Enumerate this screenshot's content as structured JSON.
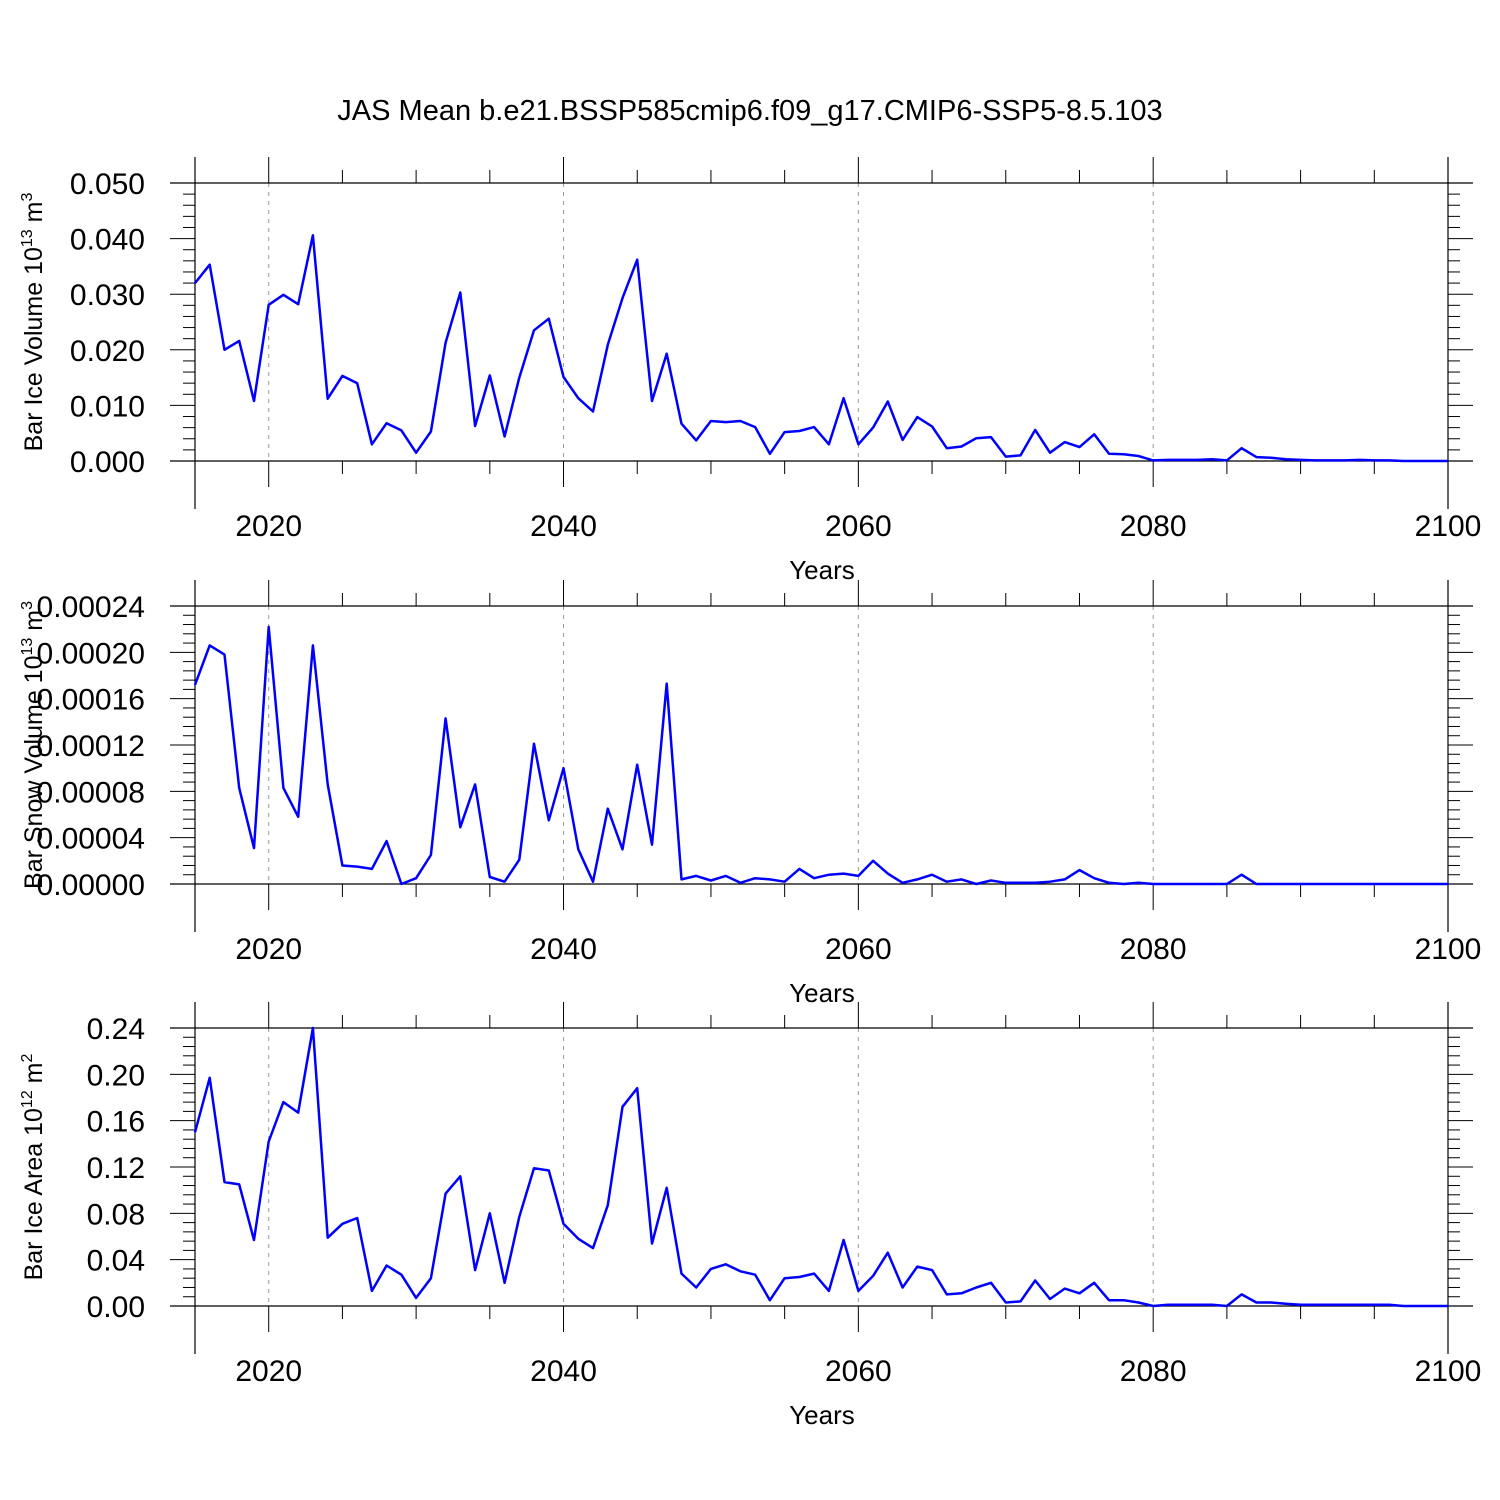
{
  "title": "JAS Mean b.e21.BSSP585cmip6.f09_g17.CMIP6-SSP5-8.5.103",
  "colors": {
    "line": "#0000ff",
    "axis": "#000000",
    "grid": "#999999"
  },
  "chart_data": [
    {
      "type": "line",
      "ylabel": {
        "text": "Bar Ice Volume 10",
        "exp": "13",
        "unit": " m",
        "unit_exp": "3"
      },
      "xlabel": "Years",
      "xlim": [
        2015,
        2100
      ],
      "ylim": [
        0,
        0.05
      ],
      "yticks": [
        0,
        0.01,
        0.02,
        0.03,
        0.04,
        0.05
      ],
      "ytick_labels": [
        "0.000",
        "0.010",
        "0.020",
        "0.030",
        "0.040",
        "0.050"
      ],
      "xticks": [
        2020,
        2040,
        2060,
        2080,
        2100
      ],
      "xtick_labels": [
        "2020",
        "2040",
        "2060",
        "2080",
        "2100"
      ],
      "grid": "x-dashed",
      "x": [
        2015,
        2016,
        2017,
        2018,
        2019,
        2020,
        2021,
        2022,
        2023,
        2024,
        2025,
        2026,
        2027,
        2028,
        2029,
        2030,
        2031,
        2032,
        2033,
        2034,
        2035,
        2036,
        2037,
        2038,
        2039,
        2040,
        2041,
        2042,
        2043,
        2044,
        2045,
        2046,
        2047,
        2048,
        2049,
        2050,
        2051,
        2052,
        2053,
        2054,
        2055,
        2056,
        2057,
        2058,
        2059,
        2060,
        2061,
        2062,
        2063,
        2064,
        2065,
        2066,
        2067,
        2068,
        2069,
        2070,
        2071,
        2072,
        2073,
        2074,
        2075,
        2076,
        2077,
        2078,
        2079,
        2080,
        2081,
        2082,
        2083,
        2084,
        2085,
        2086,
        2087,
        2088,
        2089,
        2090,
        2091,
        2092,
        2093,
        2094,
        2095,
        2096,
        2097,
        2098,
        2099,
        2100
      ],
      "values": [
        0.032,
        0.0353,
        0.02,
        0.0216,
        0.0108,
        0.0281,
        0.0299,
        0.0282,
        0.0406,
        0.0112,
        0.0153,
        0.014,
        0.003,
        0.0068,
        0.0055,
        0.0015,
        0.0053,
        0.0213,
        0.0303,
        0.0063,
        0.0154,
        0.0044,
        0.015,
        0.0235,
        0.0256,
        0.0151,
        0.0113,
        0.0089,
        0.0209,
        0.0293,
        0.0362,
        0.0108,
        0.0193,
        0.0067,
        0.0037,
        0.0072,
        0.007,
        0.0072,
        0.0061,
        0.0013,
        0.0052,
        0.0054,
        0.0061,
        0.003,
        0.0113,
        0.003,
        0.006,
        0.0107,
        0.0038,
        0.0079,
        0.0062,
        0.0023,
        0.0026,
        0.0041,
        0.0043,
        0.0008,
        0.001,
        0.0056,
        0.0015,
        0.0034,
        0.0025,
        0.0048,
        0.0013,
        0.0012,
        0.0009,
        0.0001,
        0.0002,
        0.0002,
        0.0002,
        0.0003,
        0.0001,
        0.0023,
        0.0007,
        0.0006,
        0.0003,
        0.0002,
        0.0001,
        0.0001,
        0.0001,
        0.0002,
        0.0001,
        0.0001,
        0.0,
        0.0,
        0.0,
        0.0
      ]
    },
    {
      "type": "line",
      "ylabel": {
        "text": "Bar Snow Volume 10",
        "exp": "13",
        "unit": " m",
        "unit_exp": "3"
      },
      "xlabel": "Years",
      "xlim": [
        2015,
        2100
      ],
      "ylim": [
        0,
        0.00024
      ],
      "yticks": [
        0,
        4e-05,
        8e-05,
        0.00012,
        0.00016,
        0.0002,
        0.00024
      ],
      "ytick_labels": [
        "0.00000",
        "0.00004",
        "0.00008",
        "0.00012",
        "0.00016",
        "0.00020",
        "0.00024"
      ],
      "xticks": [
        2020,
        2040,
        2060,
        2080,
        2100
      ],
      "xtick_labels": [
        "2020",
        "2040",
        "2060",
        "2080",
        "2100"
      ],
      "grid": "x-dashed",
      "x": [
        2015,
        2016,
        2017,
        2018,
        2019,
        2020,
        2021,
        2022,
        2023,
        2024,
        2025,
        2026,
        2027,
        2028,
        2029,
        2030,
        2031,
        2032,
        2033,
        2034,
        2035,
        2036,
        2037,
        2038,
        2039,
        2040,
        2041,
        2042,
        2043,
        2044,
        2045,
        2046,
        2047,
        2048,
        2049,
        2050,
        2051,
        2052,
        2053,
        2054,
        2055,
        2056,
        2057,
        2058,
        2059,
        2060,
        2061,
        2062,
        2063,
        2064,
        2065,
        2066,
        2067,
        2068,
        2069,
        2070,
        2071,
        2072,
        2073,
        2074,
        2075,
        2076,
        2077,
        2078,
        2079,
        2080,
        2081,
        2082,
        2083,
        2084,
        2085,
        2086,
        2087,
        2088,
        2089,
        2090,
        2091,
        2092,
        2093,
        2094,
        2095,
        2096,
        2097,
        2098,
        2099,
        2100
      ],
      "values": [
        0.000172,
        0.000206,
        0.000198,
        8.3e-05,
        3.1e-05,
        0.000222,
        8.3e-05,
        5.8e-05,
        0.000206,
        8.6e-05,
        1.6e-05,
        1.5e-05,
        1.3e-05,
        3.7e-05,
        0.0,
        5e-06,
        2.5e-05,
        0.000143,
        4.9e-05,
        8.6e-05,
        6e-06,
        2e-06,
        2.1e-05,
        0.000121,
        5.5e-05,
        0.0001,
        3e-05,
        2e-06,
        6.5e-05,
        3e-05,
        0.000103,
        3.4e-05,
        0.000173,
        4e-06,
        7e-06,
        3e-06,
        7e-06,
        1e-06,
        5e-06,
        4e-06,
        2e-06,
        1.3e-05,
        5e-06,
        8e-06,
        9e-06,
        7e-06,
        2e-05,
        9e-06,
        1e-06,
        4e-06,
        8e-06,
        2e-06,
        4e-06,
        0.0,
        3e-06,
        1e-06,
        1e-06,
        1e-06,
        2e-06,
        4e-06,
        1.2e-05,
        5e-06,
        1e-06,
        0.0,
        1e-06,
        0.0,
        0.0,
        0.0,
        0.0,
        0.0,
        0.0,
        8e-06,
        0.0,
        0.0,
        0.0,
        0.0,
        0.0,
        0.0,
        0.0,
        0.0,
        0.0,
        0.0,
        0.0,
        0.0,
        0.0,
        0.0
      ]
    },
    {
      "type": "line",
      "ylabel": {
        "text": "Bar Ice Area 10",
        "exp": "12",
        "unit": " m",
        "unit_exp": "2"
      },
      "xlabel": "Years",
      "xlim": [
        2015,
        2100
      ],
      "ylim": [
        0,
        0.24
      ],
      "yticks": [
        0,
        0.04,
        0.08,
        0.12,
        0.16,
        0.2,
        0.24
      ],
      "ytick_labels": [
        "0.00",
        "0.04",
        "0.08",
        "0.12",
        "0.16",
        "0.20",
        "0.24"
      ],
      "xticks": [
        2020,
        2040,
        2060,
        2080,
        2100
      ],
      "xtick_labels": [
        "2020",
        "2040",
        "2060",
        "2080",
        "2100"
      ],
      "grid": "x-dashed",
      "x": [
        2015,
        2016,
        2017,
        2018,
        2019,
        2020,
        2021,
        2022,
        2023,
        2024,
        2025,
        2026,
        2027,
        2028,
        2029,
        2030,
        2031,
        2032,
        2033,
        2034,
        2035,
        2036,
        2037,
        2038,
        2039,
        2040,
        2041,
        2042,
        2043,
        2044,
        2045,
        2046,
        2047,
        2048,
        2049,
        2050,
        2051,
        2052,
        2053,
        2054,
        2055,
        2056,
        2057,
        2058,
        2059,
        2060,
        2061,
        2062,
        2063,
        2064,
        2065,
        2066,
        2067,
        2068,
        2069,
        2070,
        2071,
        2072,
        2073,
        2074,
        2075,
        2076,
        2077,
        2078,
        2079,
        2080,
        2081,
        2082,
        2083,
        2084,
        2085,
        2086,
        2087,
        2088,
        2089,
        2090,
        2091,
        2092,
        2093,
        2094,
        2095,
        2096,
        2097,
        2098,
        2099,
        2100
      ],
      "values": [
        0.15,
        0.197,
        0.107,
        0.105,
        0.057,
        0.142,
        0.176,
        0.167,
        0.24,
        0.059,
        0.071,
        0.076,
        0.013,
        0.035,
        0.027,
        0.007,
        0.024,
        0.097,
        0.112,
        0.031,
        0.08,
        0.02,
        0.077,
        0.119,
        0.117,
        0.071,
        0.058,
        0.05,
        0.087,
        0.172,
        0.188,
        0.054,
        0.102,
        0.028,
        0.016,
        0.032,
        0.036,
        0.03,
        0.027,
        0.005,
        0.024,
        0.025,
        0.028,
        0.013,
        0.057,
        0.013,
        0.026,
        0.046,
        0.016,
        0.034,
        0.031,
        0.01,
        0.011,
        0.016,
        0.02,
        0.003,
        0.004,
        0.022,
        0.006,
        0.015,
        0.011,
        0.02,
        0.005,
        0.005,
        0.003,
        0.0,
        0.001,
        0.001,
        0.001,
        0.001,
        0.0,
        0.01,
        0.003,
        0.003,
        0.002,
        0.001,
        0.001,
        0.001,
        0.001,
        0.001,
        0.001,
        0.001,
        0.0,
        0.0,
        0.0,
        0.0
      ]
    }
  ]
}
